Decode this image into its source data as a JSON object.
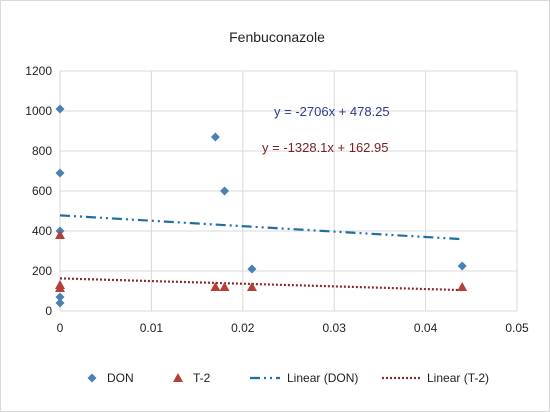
{
  "chart_data": {
    "type": "scatter",
    "title": "Fenbuconazole",
    "xlabel": "",
    "ylabel": "",
    "xlim": [
      0,
      0.05
    ],
    "ylim": [
      0,
      1200
    ],
    "x_ticks": [
      "0",
      "0.01",
      "0.02",
      "0.03",
      "0.04",
      "0.05"
    ],
    "y_ticks": [
      "0",
      "200",
      "400",
      "600",
      "800",
      "1000",
      "1200"
    ],
    "grid": true,
    "legend_position": "bottom",
    "series": [
      {
        "name": "DON",
        "marker": "diamond",
        "color": "#4A7FB8",
        "points": [
          {
            "x": 0,
            "y": 1010
          },
          {
            "x": 0,
            "y": 690
          },
          {
            "x": 0,
            "y": 400
          },
          {
            "x": 0,
            "y": 70
          },
          {
            "x": 0,
            "y": 40
          },
          {
            "x": 0.017,
            "y": 870
          },
          {
            "x": 0.018,
            "y": 600
          },
          {
            "x": 0.021,
            "y": 210
          },
          {
            "x": 0.044,
            "y": 225
          }
        ]
      },
      {
        "name": "T-2",
        "marker": "triangle",
        "color": "#B5403A",
        "points": [
          {
            "x": 0,
            "y": 380
          },
          {
            "x": 0,
            "y": 130
          },
          {
            "x": 0,
            "y": 115
          },
          {
            "x": 0.017,
            "y": 120
          },
          {
            "x": 0.018,
            "y": 120
          },
          {
            "x": 0.021,
            "y": 120
          },
          {
            "x": 0.044,
            "y": 120
          }
        ]
      }
    ],
    "trendlines": [
      {
        "name": "Linear (DON)",
        "of": "DON",
        "slope": -2706,
        "intercept": 478.25,
        "x_range": [
          0,
          0.044
        ],
        "color": "#1F6FA0",
        "style": "dash-dot-dot",
        "equation": "y = -2706x + 478.25",
        "equation_color": "#2E3A8C"
      },
      {
        "name": "Linear (T-2)",
        "of": "T-2",
        "slope": -1328.1,
        "intercept": 162.95,
        "x_range": [
          0,
          0.044
        ],
        "color": "#8C2A2A",
        "style": "dotted",
        "equation": "y = -1328.1x + 162.95",
        "equation_color": "#7A1F1F"
      }
    ]
  }
}
